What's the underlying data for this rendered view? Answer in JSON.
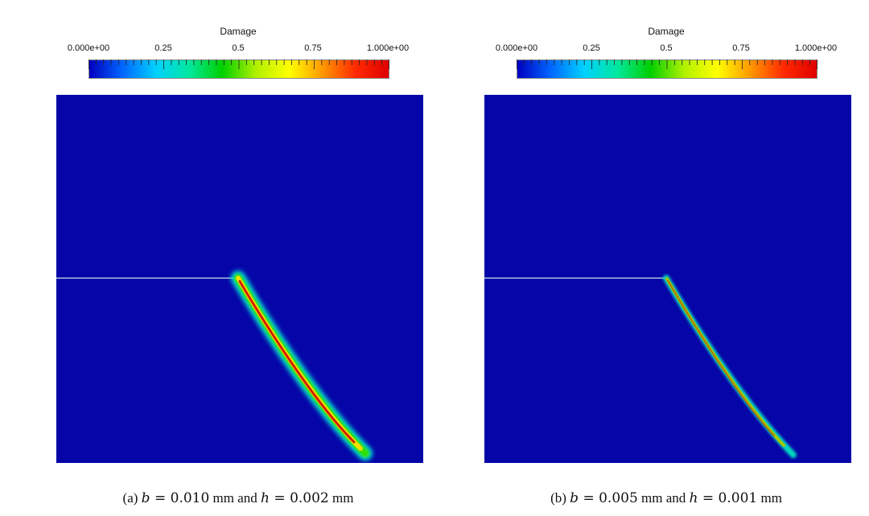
{
  "colorbar": {
    "title": "Damage",
    "tick_labels": [
      "0.000e+00",
      "0.25",
      "0.5",
      "0.75",
      "1.000e+00"
    ],
    "range": [
      0,
      1
    ],
    "colormap": [
      "#0000c0",
      "#0066ff",
      "#00d0ff",
      "#00e8a0",
      "#00d000",
      "#b0f000",
      "#ffff00",
      "#ff9900",
      "#ff2a00",
      "#e00000"
    ]
  },
  "field": {
    "background_color": "#0505a8",
    "notch_color": "#8090d0",
    "crack_core_color": "#d02000"
  },
  "panels": [
    {
      "caption_prefix": "(a) ",
      "var1": "b",
      "eq1": " = ",
      "val1": "0.010",
      "unit1": " mm and ",
      "var2": "h",
      "eq2": " = ",
      "val2": "0.002",
      "unit2": " mm"
    },
    {
      "caption_prefix": "(b) ",
      "var1": "b",
      "eq1": " = ",
      "val1": "0.005",
      "unit1": " mm and ",
      "var2": "h",
      "eq2": " = ",
      "val2": "0.001",
      "unit2": " mm"
    }
  ]
}
